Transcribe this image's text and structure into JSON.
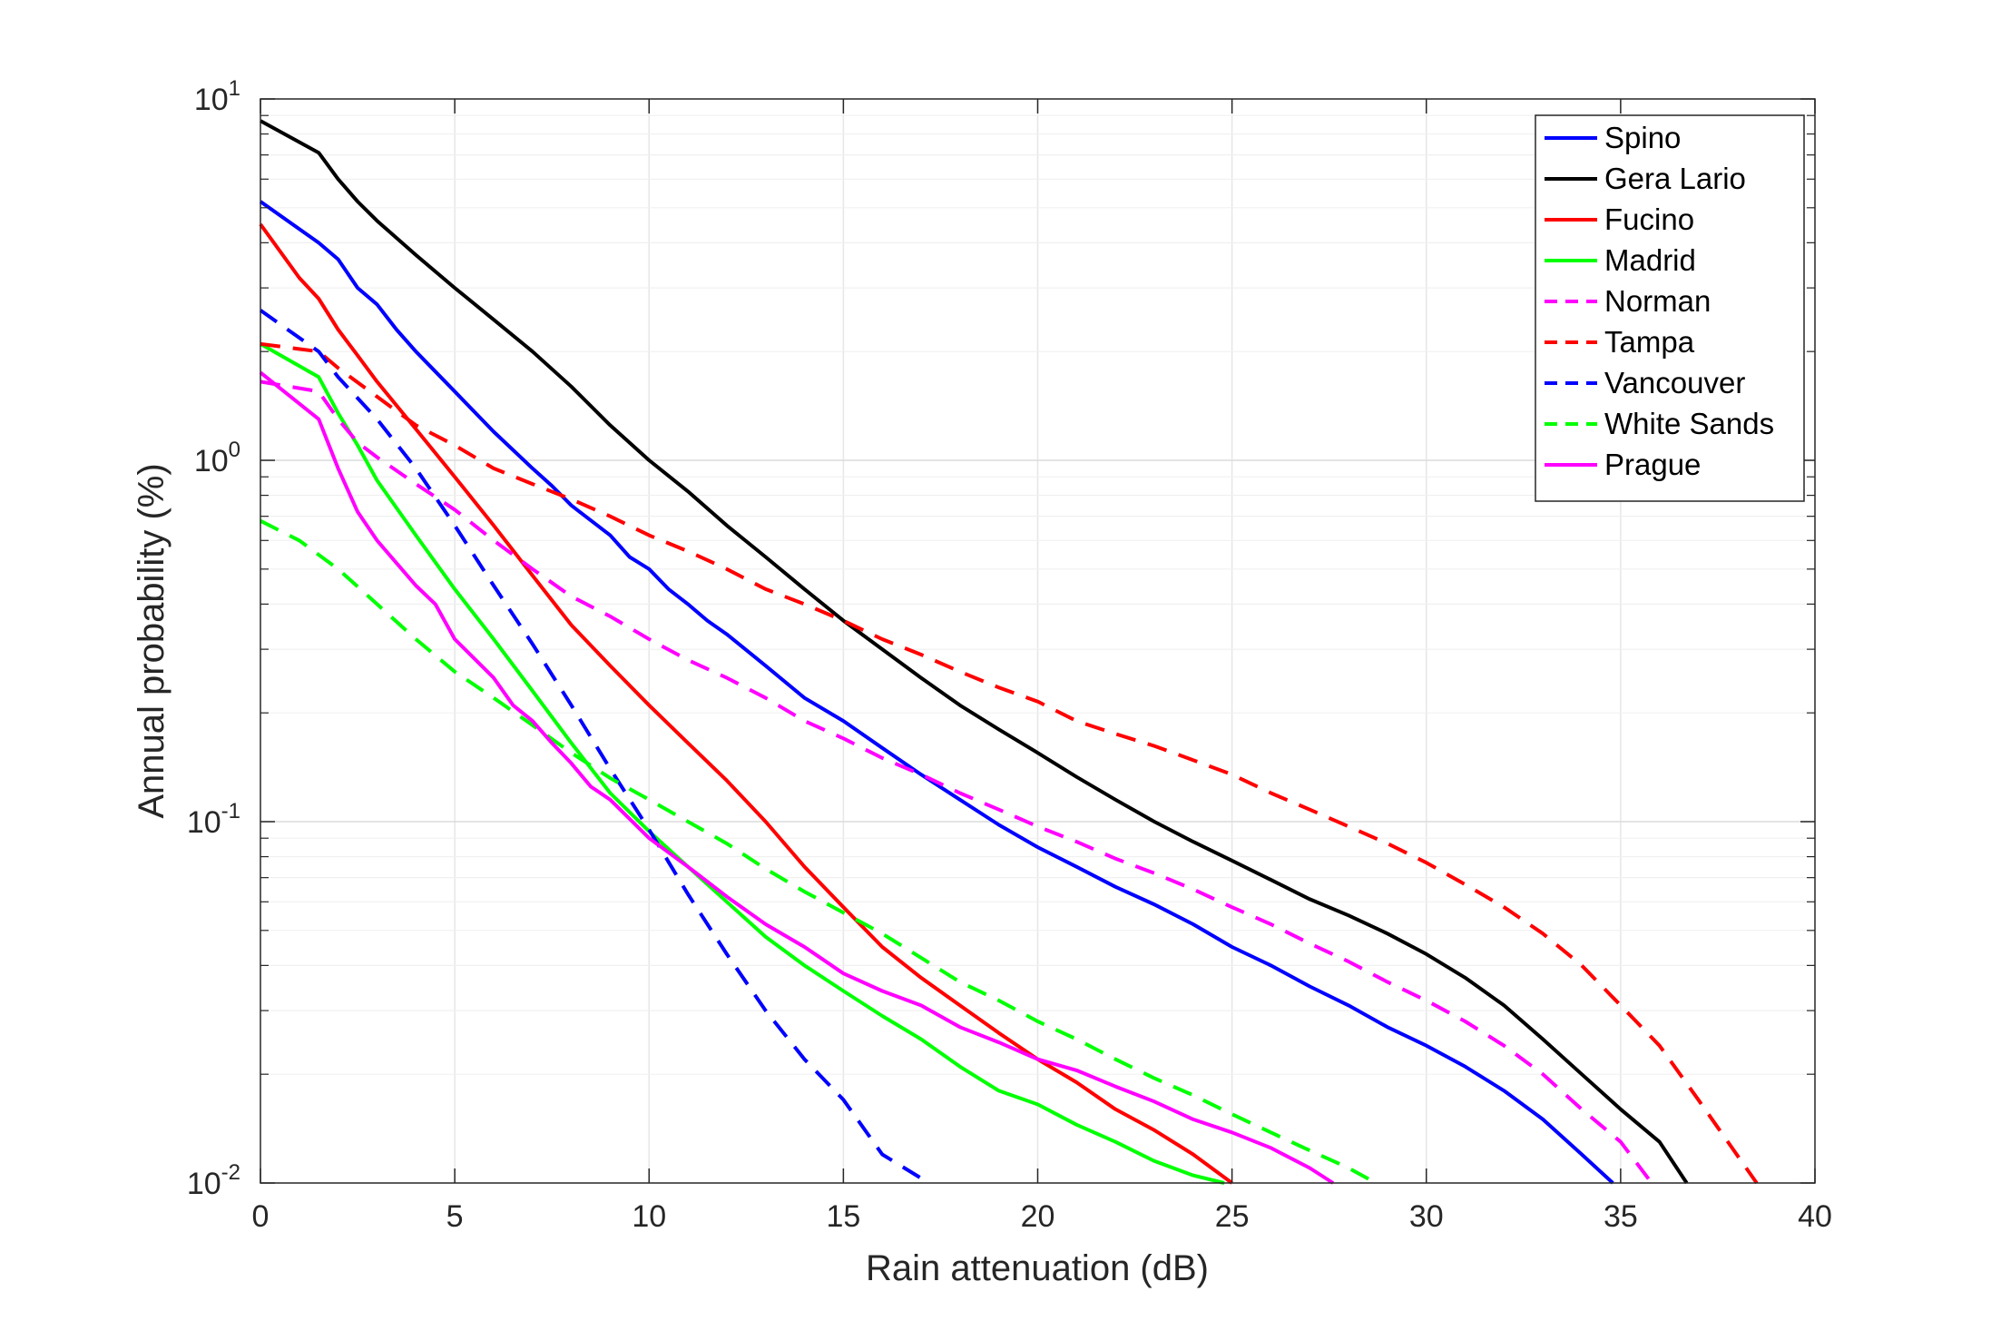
{
  "chart_data": {
    "type": "line",
    "title": "",
    "xlabel": "Rain attenuation (dB)",
    "ylabel": "Annual probability (%)",
    "xlim": [
      0,
      40
    ],
    "ylim": [
      0.01,
      10
    ],
    "yscale": "log",
    "grid": true,
    "legend_position": "top-right",
    "x_ticks": [
      0,
      5,
      10,
      15,
      20,
      25,
      30,
      35,
      40
    ],
    "x_tick_labels": [
      "0",
      "5",
      "10",
      "15",
      "20",
      "25",
      "30",
      "35",
      "40"
    ],
    "y_ticks": [
      {
        "value": 0.01,
        "base": "10",
        "exp": "-2"
      },
      {
        "value": 0.1,
        "base": "10",
        "exp": "-1"
      },
      {
        "value": 1,
        "base": "10",
        "exp": "0"
      },
      {
        "value": 10,
        "base": "10",
        "exp": "1"
      }
    ],
    "series": [
      {
        "name": "Spino",
        "color": "#0000ff",
        "dash": "solid",
        "x": [
          0,
          1.5,
          2,
          2.5,
          3,
          3.5,
          4,
          5,
          6,
          7,
          7.5,
          8,
          9,
          9.5,
          10,
          10.5,
          11,
          11.5,
          12,
          13,
          14,
          15,
          16,
          17,
          18,
          19,
          20,
          21,
          22,
          23,
          24,
          25,
          26,
          27,
          28,
          29,
          30,
          31,
          32,
          33,
          34,
          34.8
        ],
        "y": [
          5.2,
          4.0,
          3.6,
          3.0,
          2.7,
          2.3,
          2.0,
          1.55,
          1.2,
          0.95,
          0.85,
          0.75,
          0.62,
          0.54,
          0.5,
          0.44,
          0.4,
          0.36,
          0.33,
          0.27,
          0.22,
          0.19,
          0.16,
          0.135,
          0.115,
          0.098,
          0.085,
          0.075,
          0.066,
          0.059,
          0.052,
          0.045,
          0.04,
          0.035,
          0.031,
          0.027,
          0.024,
          0.021,
          0.018,
          0.015,
          0.012,
          0.01
        ]
      },
      {
        "name": "Gera Lario",
        "color": "#000000",
        "dash": "solid",
        "x": [
          0,
          1.5,
          2,
          2.5,
          3,
          4,
          5,
          6,
          7,
          8,
          9,
          10,
          11,
          12,
          13,
          14,
          15,
          16,
          17,
          18,
          19,
          20,
          21,
          22,
          23,
          24,
          25,
          26,
          27,
          28,
          29,
          30,
          31,
          32,
          33,
          34,
          35,
          36,
          36.7
        ],
        "y": [
          8.7,
          7.1,
          6.0,
          5.2,
          4.6,
          3.7,
          3.0,
          2.45,
          2.0,
          1.6,
          1.25,
          1.0,
          0.82,
          0.66,
          0.54,
          0.44,
          0.36,
          0.3,
          0.25,
          0.21,
          0.18,
          0.155,
          0.133,
          0.115,
          0.1,
          0.088,
          0.078,
          0.069,
          0.061,
          0.055,
          0.049,
          0.043,
          0.037,
          0.031,
          0.025,
          0.02,
          0.016,
          0.013,
          0.01
        ]
      },
      {
        "name": "Fucino",
        "color": "#ff0000",
        "dash": "solid",
        "x": [
          0,
          1,
          1.5,
          2,
          2.5,
          3,
          4,
          5,
          6,
          7,
          8,
          9,
          10,
          11,
          12,
          13,
          14,
          15,
          16,
          17,
          18,
          19,
          20,
          21,
          22,
          23,
          24,
          25
        ],
        "y": [
          4.5,
          3.2,
          2.8,
          2.3,
          1.95,
          1.65,
          1.22,
          0.9,
          0.66,
          0.48,
          0.35,
          0.27,
          0.21,
          0.165,
          0.13,
          0.1,
          0.075,
          0.058,
          0.045,
          0.037,
          0.031,
          0.026,
          0.022,
          0.019,
          0.016,
          0.014,
          0.012,
          0.01
        ]
      },
      {
        "name": "Madrid",
        "color": "#00ff00",
        "dash": "solid",
        "x": [
          0,
          1.5,
          2,
          2.5,
          3,
          4,
          5,
          6,
          7,
          8,
          9,
          10,
          11,
          12,
          13,
          14,
          15,
          16,
          17,
          18,
          19,
          20,
          21,
          22,
          23,
          24,
          24.8
        ],
        "y": [
          2.1,
          1.7,
          1.35,
          1.1,
          0.88,
          0.62,
          0.44,
          0.32,
          0.23,
          0.165,
          0.12,
          0.094,
          0.075,
          0.06,
          0.048,
          0.04,
          0.034,
          0.029,
          0.025,
          0.021,
          0.018,
          0.0165,
          0.0145,
          0.013,
          0.0115,
          0.0105,
          0.01
        ]
      },
      {
        "name": "Norman",
        "color": "#ff00ff",
        "dash": "dashed",
        "x": [
          0,
          1.5,
          2,
          2.5,
          3,
          4,
          5,
          6,
          7,
          8,
          9,
          10,
          11,
          12,
          13,
          14,
          15,
          16,
          17,
          18,
          19,
          20,
          21,
          22,
          23,
          24,
          25,
          26,
          27,
          28,
          29,
          30,
          31,
          32,
          33,
          34,
          35,
          35.8
        ],
        "y": [
          1.65,
          1.55,
          1.3,
          1.12,
          1.02,
          0.86,
          0.73,
          0.6,
          0.5,
          0.42,
          0.37,
          0.32,
          0.28,
          0.25,
          0.22,
          0.19,
          0.17,
          0.15,
          0.135,
          0.12,
          0.108,
          0.097,
          0.088,
          0.079,
          0.072,
          0.065,
          0.058,
          0.052,
          0.046,
          0.041,
          0.036,
          0.032,
          0.028,
          0.024,
          0.02,
          0.016,
          0.013,
          0.01
        ]
      },
      {
        "name": "Tampa",
        "color": "#ff0000",
        "dash": "dashed",
        "x": [
          0,
          1.5,
          2,
          3,
          4,
          5,
          6,
          7,
          8,
          9,
          10,
          11,
          12,
          13,
          14,
          15,
          16,
          17,
          18,
          19,
          20,
          21,
          22,
          23,
          24,
          25,
          26,
          27,
          28,
          29,
          30,
          31,
          32,
          33,
          34,
          35,
          36,
          37,
          38.5
        ],
        "y": [
          2.1,
          2.0,
          1.8,
          1.5,
          1.25,
          1.1,
          0.95,
          0.86,
          0.78,
          0.7,
          0.62,
          0.56,
          0.5,
          0.44,
          0.4,
          0.36,
          0.32,
          0.29,
          0.26,
          0.235,
          0.215,
          0.19,
          0.175,
          0.162,
          0.148,
          0.135,
          0.12,
          0.108,
          0.097,
          0.087,
          0.077,
          0.067,
          0.058,
          0.049,
          0.04,
          0.031,
          0.024,
          0.017,
          0.01
        ]
      },
      {
        "name": "Vancouver",
        "color": "#0000ff",
        "dash": "dashed",
        "x": [
          0,
          1.5,
          2,
          3,
          4,
          5,
          6,
          7,
          8,
          9,
          10,
          11,
          12,
          13,
          14,
          15,
          16,
          17.2
        ],
        "y": [
          2.6,
          2.0,
          1.7,
          1.3,
          0.95,
          0.66,
          0.45,
          0.31,
          0.21,
          0.14,
          0.095,
          0.063,
          0.043,
          0.03,
          0.022,
          0.017,
          0.012,
          0.01
        ]
      },
      {
        "name": "White Sands",
        "color": "#00ff00",
        "dash": "dashed",
        "x": [
          0,
          1,
          2,
          3,
          4,
          5,
          6,
          7,
          8,
          9,
          10,
          11,
          12,
          13,
          14,
          15,
          16,
          17,
          18,
          19,
          20,
          21,
          22,
          23,
          24,
          25,
          26,
          27,
          28,
          28.7
        ],
        "y": [
          0.68,
          0.6,
          0.5,
          0.4,
          0.32,
          0.26,
          0.22,
          0.185,
          0.155,
          0.132,
          0.115,
          0.1,
          0.087,
          0.074,
          0.064,
          0.056,
          0.049,
          0.042,
          0.036,
          0.032,
          0.028,
          0.025,
          0.022,
          0.0195,
          0.0175,
          0.0155,
          0.0138,
          0.0123,
          0.011,
          0.01
        ]
      },
      {
        "name": "Prague",
        "color": "#ff00ff",
        "dash": "solid",
        "x": [
          0,
          1.5,
          2,
          2.5,
          3,
          4,
          4.5,
          5,
          6,
          6.5,
          7,
          7.5,
          8,
          8.5,
          9,
          10,
          11,
          12,
          13,
          14,
          15,
          16,
          17,
          18,
          19,
          20,
          21,
          22,
          23,
          24,
          25,
          26,
          27,
          27.6
        ],
        "y": [
          1.75,
          1.3,
          0.95,
          0.72,
          0.6,
          0.45,
          0.4,
          0.32,
          0.25,
          0.21,
          0.19,
          0.165,
          0.145,
          0.125,
          0.115,
          0.09,
          0.075,
          0.062,
          0.052,
          0.045,
          0.038,
          0.034,
          0.031,
          0.027,
          0.0245,
          0.022,
          0.0205,
          0.0185,
          0.0168,
          0.015,
          0.0138,
          0.0125,
          0.011,
          0.01
        ]
      }
    ]
  }
}
